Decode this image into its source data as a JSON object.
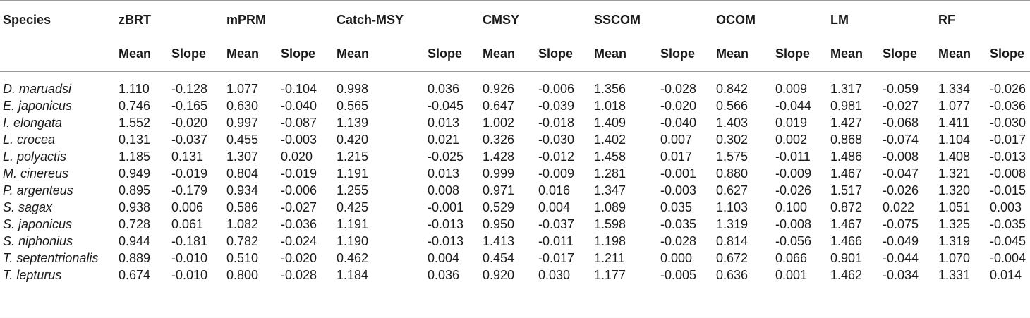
{
  "table": {
    "species_header": "Species",
    "methods": [
      "zBRT",
      "mPRM",
      "Catch-MSY",
      "CMSY",
      "SSCOM",
      "OCOM",
      "LM",
      "RF"
    ],
    "subheaders": [
      "Mean",
      "Slope",
      "Mean",
      "Slope",
      "Mean",
      "Slope",
      "Mean",
      "Slope",
      "Mean",
      "Slope",
      "Mean",
      "Slope",
      "Mean",
      "Slope",
      "Mean",
      "Slope"
    ],
    "rows": [
      {
        "species": "D. maruadsi",
        "values": [
          "1.110",
          "-0.128",
          "1.077",
          "-0.104",
          "0.998",
          "0.036",
          "0.926",
          "-0.006",
          "1.356",
          "-0.028",
          "0.842",
          "0.009",
          "1.317",
          "-0.059",
          "1.334",
          "-0.026"
        ]
      },
      {
        "species": "E. japonicus",
        "values": [
          "0.746",
          "-0.165",
          "0.630",
          "-0.040",
          "0.565",
          "-0.045",
          "0.647",
          "-0.039",
          "1.018",
          "-0.020",
          "0.566",
          "-0.044",
          "0.981",
          "-0.027",
          "1.077",
          "-0.036"
        ]
      },
      {
        "species": "I. elongata",
        "values": [
          "1.552",
          "-0.020",
          "0.997",
          "-0.087",
          "1.139",
          "0.013",
          "1.002",
          "-0.018",
          "1.409",
          "-0.040",
          "1.403",
          "0.019",
          "1.427",
          "-0.068",
          "1.411",
          "-0.030"
        ]
      },
      {
        "species": "L. crocea",
        "values": [
          "0.131",
          "-0.037",
          "0.455",
          "-0.003",
          "0.420",
          "0.021",
          "0.326",
          "-0.030",
          "1.402",
          "0.007",
          "0.302",
          "0.002",
          "0.868",
          "-0.074",
          "1.104",
          "-0.017"
        ]
      },
      {
        "species": "L. polyactis",
        "values": [
          "1.185",
          "0.131",
          "1.307",
          "0.020",
          "1.215",
          "-0.025",
          "1.428",
          "-0.012",
          "1.458",
          "0.017",
          "1.575",
          "-0.011",
          "1.486",
          "-0.008",
          "1.408",
          "-0.013"
        ]
      },
      {
        "species": "M. cinereus",
        "values": [
          "0.949",
          "-0.019",
          "0.804",
          "-0.019",
          "1.191",
          "0.013",
          "0.999",
          "-0.009",
          "1.281",
          "-0.001",
          "0.880",
          "-0.009",
          "1.467",
          "-0.047",
          "1.321",
          "-0.008"
        ]
      },
      {
        "species": "P. argenteus",
        "values": [
          "0.895",
          "-0.179",
          "0.934",
          "-0.006",
          "1.255",
          "0.008",
          "0.971",
          "0.016",
          "1.347",
          "-0.003",
          "0.627",
          "-0.026",
          "1.517",
          "-0.026",
          "1.320",
          "-0.015"
        ]
      },
      {
        "species": "S. sagax",
        "values": [
          "0.938",
          "0.006",
          "0.586",
          "-0.027",
          "0.425",
          "-0.001",
          "0.529",
          "0.004",
          "1.089",
          "0.035",
          "1.103",
          "0.100",
          "0.872",
          "0.022",
          "1.051",
          "0.003"
        ]
      },
      {
        "species": "S. japonicus",
        "values": [
          "0.728",
          "0.061",
          "1.082",
          "-0.036",
          "1.191",
          "-0.013",
          "0.950",
          "-0.037",
          "1.598",
          "-0.035",
          "1.319",
          "-0.008",
          "1.467",
          "-0.075",
          "1.325",
          "-0.035"
        ]
      },
      {
        "species": "S. niphonius",
        "values": [
          "0.944",
          "-0.181",
          "0.782",
          "-0.024",
          "1.190",
          "-0.013",
          "1.413",
          "-0.011",
          "1.198",
          "-0.028",
          "0.814",
          "-0.056",
          "1.466",
          "-0.049",
          "1.319",
          "-0.045"
        ]
      },
      {
        "species": "T. septentrionalis",
        "values": [
          "0.889",
          "-0.010",
          "0.510",
          "-0.020",
          "0.462",
          "0.004",
          "0.454",
          "-0.017",
          "1.211",
          "0.000",
          "0.672",
          "0.066",
          "0.901",
          "-0.044",
          "1.070",
          "-0.004"
        ]
      },
      {
        "species": "T. lepturus",
        "values": [
          "0.674",
          "-0.010",
          "0.800",
          "-0.028",
          "1.184",
          "0.036",
          "0.920",
          "0.030",
          "1.177",
          "-0.005",
          "0.636",
          "0.001",
          "1.462",
          "-0.034",
          "1.331",
          "0.014"
        ]
      }
    ]
  }
}
